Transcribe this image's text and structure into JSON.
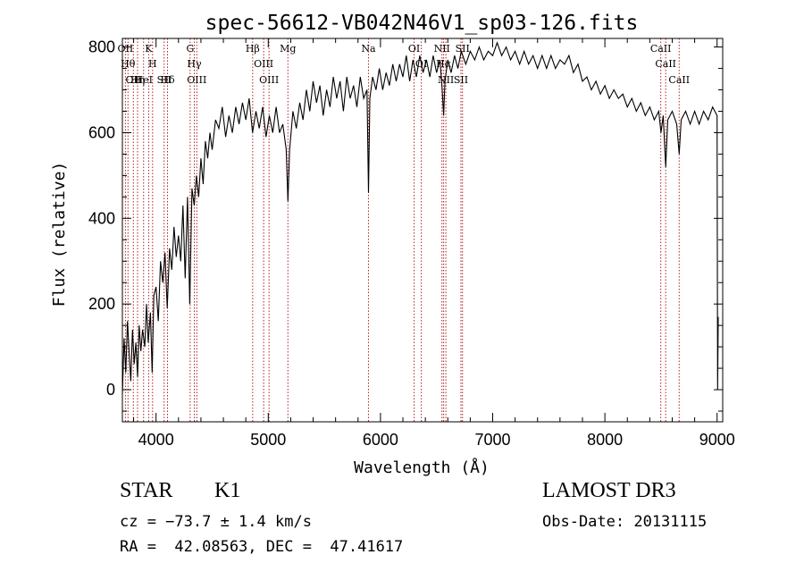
{
  "chart_data": {
    "type": "line",
    "title": "spec-56612-VB042N46V1_sp03-126.fits",
    "xlabel": "Wavelength (Å)",
    "ylabel": "Flux (relative)",
    "xlim": [
      3700,
      9050
    ],
    "ylim": [
      -75,
      820
    ],
    "xticks": [
      4000,
      5000,
      6000,
      7000,
      8000,
      9000
    ],
    "xtick_labels": [
      "4000",
      "5000",
      "6000",
      "7000",
      "8000",
      "9000"
    ],
    "yticks": [
      0,
      200,
      400,
      600,
      800
    ],
    "ytick_labels": [
      "0",
      "200",
      "400",
      "600",
      "800"
    ],
    "grid": false,
    "series": [
      {
        "name": "spectrum",
        "points": [
          [
            3700,
            -10
          ],
          [
            3715,
            120
          ],
          [
            3730,
            40
          ],
          [
            3745,
            160
          ],
          [
            3760,
            90
          ],
          [
            3775,
            20
          ],
          [
            3790,
            140
          ],
          [
            3805,
            60
          ],
          [
            3820,
            110
          ],
          [
            3835,
            30
          ],
          [
            3850,
            150
          ],
          [
            3865,
            90
          ],
          [
            3880,
            140
          ],
          [
            3900,
            100
          ],
          [
            3915,
            200
          ],
          [
            3930,
            110
          ],
          [
            3950,
            180
          ],
          [
            3965,
            40
          ],
          [
            3980,
            220
          ],
          [
            4000,
            240
          ],
          [
            4020,
            160
          ],
          [
            4040,
            300
          ],
          [
            4060,
            250
          ],
          [
            4080,
            320
          ],
          [
            4100,
            190
          ],
          [
            4120,
            330
          ],
          [
            4140,
            280
          ],
          [
            4160,
            380
          ],
          [
            4180,
            310
          ],
          [
            4200,
            360
          ],
          [
            4220,
            300
          ],
          [
            4240,
            430
          ],
          [
            4260,
            260
          ],
          [
            4280,
            450
          ],
          [
            4300,
            200
          ],
          [
            4320,
            470
          ],
          [
            4340,
            430
          ],
          [
            4360,
            500
          ],
          [
            4380,
            450
          ],
          [
            4400,
            540
          ],
          [
            4420,
            480
          ],
          [
            4440,
            580
          ],
          [
            4460,
            540
          ],
          [
            4480,
            600
          ],
          [
            4500,
            560
          ],
          [
            4530,
            630
          ],
          [
            4560,
            610
          ],
          [
            4590,
            660
          ],
          [
            4620,
            590
          ],
          [
            4650,
            640
          ],
          [
            4680,
            600
          ],
          [
            4710,
            660
          ],
          [
            4740,
            620
          ],
          [
            4770,
            670
          ],
          [
            4800,
            630
          ],
          [
            4830,
            680
          ],
          [
            4860,
            600
          ],
          [
            4890,
            650
          ],
          [
            4920,
            610
          ],
          [
            4950,
            660
          ],
          [
            4980,
            590
          ],
          [
            5010,
            640
          ],
          [
            5040,
            600
          ],
          [
            5070,
            660
          ],
          [
            5100,
            600
          ],
          [
            5130,
            620
          ],
          [
            5160,
            560
          ],
          [
            5175,
            440
          ],
          [
            5190,
            560
          ],
          [
            5220,
            650
          ],
          [
            5250,
            610
          ],
          [
            5280,
            670
          ],
          [
            5310,
            630
          ],
          [
            5340,
            700
          ],
          [
            5370,
            650
          ],
          [
            5400,
            720
          ],
          [
            5430,
            670
          ],
          [
            5460,
            710
          ],
          [
            5490,
            640
          ],
          [
            5520,
            700
          ],
          [
            5550,
            660
          ],
          [
            5580,
            730
          ],
          [
            5610,
            680
          ],
          [
            5640,
            720
          ],
          [
            5670,
            650
          ],
          [
            5700,
            730
          ],
          [
            5730,
            680
          ],
          [
            5760,
            710
          ],
          [
            5790,
            660
          ],
          [
            5820,
            730
          ],
          [
            5850,
            680
          ],
          [
            5880,
            700
          ],
          [
            5893,
            460
          ],
          [
            5905,
            680
          ],
          [
            5930,
            730
          ],
          [
            5960,
            700
          ],
          [
            5990,
            750
          ],
          [
            6020,
            700
          ],
          [
            6050,
            740
          ],
          [
            6080,
            710
          ],
          [
            6110,
            760
          ],
          [
            6140,
            720
          ],
          [
            6170,
            760
          ],
          [
            6200,
            730
          ],
          [
            6230,
            780
          ],
          [
            6260,
            720
          ],
          [
            6290,
            770
          ],
          [
            6320,
            730
          ],
          [
            6350,
            780
          ],
          [
            6380,
            740
          ],
          [
            6410,
            770
          ],
          [
            6440,
            730
          ],
          [
            6470,
            780
          ],
          [
            6500,
            740
          ],
          [
            6530,
            770
          ],
          [
            6550,
            700
          ],
          [
            6563,
            640
          ],
          [
            6575,
            720
          ],
          [
            6600,
            770
          ],
          [
            6630,
            740
          ],
          [
            6660,
            780
          ],
          [
            6690,
            750
          ],
          [
            6720,
            790
          ],
          [
            6760,
            760
          ],
          [
            6800,
            790
          ],
          [
            6840,
            770
          ],
          [
            6880,
            800
          ],
          [
            6920,
            770
          ],
          [
            6960,
            790
          ],
          [
            7000,
            780
          ],
          [
            7040,
            810
          ],
          [
            7080,
            780
          ],
          [
            7120,
            800
          ],
          [
            7160,
            770
          ],
          [
            7200,
            790
          ],
          [
            7240,
            760
          ],
          [
            7280,
            790
          ],
          [
            7320,
            760
          ],
          [
            7360,
            780
          ],
          [
            7400,
            750
          ],
          [
            7440,
            780
          ],
          [
            7480,
            750
          ],
          [
            7520,
            780
          ],
          [
            7560,
            750
          ],
          [
            7600,
            770
          ],
          [
            7640,
            760
          ],
          [
            7680,
            780
          ],
          [
            7720,
            740
          ],
          [
            7760,
            760
          ],
          [
            7800,
            720
          ],
          [
            7840,
            730
          ],
          [
            7880,
            700
          ],
          [
            7920,
            720
          ],
          [
            7960,
            690
          ],
          [
            8000,
            710
          ],
          [
            8040,
            680
          ],
          [
            8080,
            700
          ],
          [
            8120,
            680
          ],
          [
            8160,
            690
          ],
          [
            8200,
            660
          ],
          [
            8240,
            680
          ],
          [
            8280,
            650
          ],
          [
            8320,
            670
          ],
          [
            8360,
            640
          ],
          [
            8400,
            660
          ],
          [
            8440,
            630
          ],
          [
            8480,
            650
          ],
          [
            8500,
            600
          ],
          [
            8520,
            640
          ],
          [
            8542,
            520
          ],
          [
            8560,
            630
          ],
          [
            8600,
            650
          ],
          [
            8640,
            620
          ],
          [
            8662,
            550
          ],
          [
            8680,
            630
          ],
          [
            8720,
            650
          ],
          [
            8760,
            620
          ],
          [
            8800,
            650
          ],
          [
            8840,
            620
          ],
          [
            8880,
            650
          ],
          [
            8920,
            630
          ],
          [
            8960,
            660
          ],
          [
            9000,
            640
          ],
          [
            9005,
            0
          ],
          [
            9010,
            170
          ]
        ]
      }
    ],
    "lines": [
      {
        "x": 3727,
        "label": "OII"
      },
      {
        "x": 3750,
        "label": "Hθ"
      },
      {
        "x": 3798,
        "label": "OII"
      },
      {
        "x": 3835,
        "label": "Hη"
      },
      {
        "x": 3889,
        "label": "HeI"
      },
      {
        "x": 3934,
        "label": "K"
      },
      {
        "x": 3969,
        "label": "H"
      },
      {
        "x": 4072,
        "label": "SII"
      },
      {
        "x": 4102,
        "label": "Hδ"
      },
      {
        "x": 4304,
        "label": "G"
      },
      {
        "x": 4341,
        "label": "Hγ"
      },
      {
        "x": 4363,
        "label": "OIII"
      },
      {
        "x": 4861,
        "label": "Hβ"
      },
      {
        "x": 4959,
        "label": "OIII"
      },
      {
        "x": 5007,
        "label": "OIII"
      },
      {
        "x": 5175,
        "label": "Mg"
      },
      {
        "x": 5893,
        "label": "Na"
      },
      {
        "x": 6300,
        "label": "OI"
      },
      {
        "x": 6364,
        "label": "OI"
      },
      {
        "x": 6548,
        "label": "NII"
      },
      {
        "x": 6563,
        "label": "Hα"
      },
      {
        "x": 6583,
        "label": "NII"
      },
      {
        "x": 6717,
        "label": "SII"
      },
      {
        "x": 6731,
        "label": "SII"
      },
      {
        "x": 8498,
        "label": "CaII"
      },
      {
        "x": 8542,
        "label": "CaII"
      },
      {
        "x": 8662,
        "label": "CaII"
      }
    ],
    "line_color": "#b22222",
    "spectrum_color": "#000000"
  },
  "info": {
    "object_class": "STAR",
    "object_subclass": "K1",
    "survey": "LAMOST DR3",
    "redshift": "cz = −73.7 ± 1.4 km/s",
    "obs_date": "Obs-Date: 20131115",
    "coords": "RA =  42.08563, DEC =  47.41617"
  }
}
